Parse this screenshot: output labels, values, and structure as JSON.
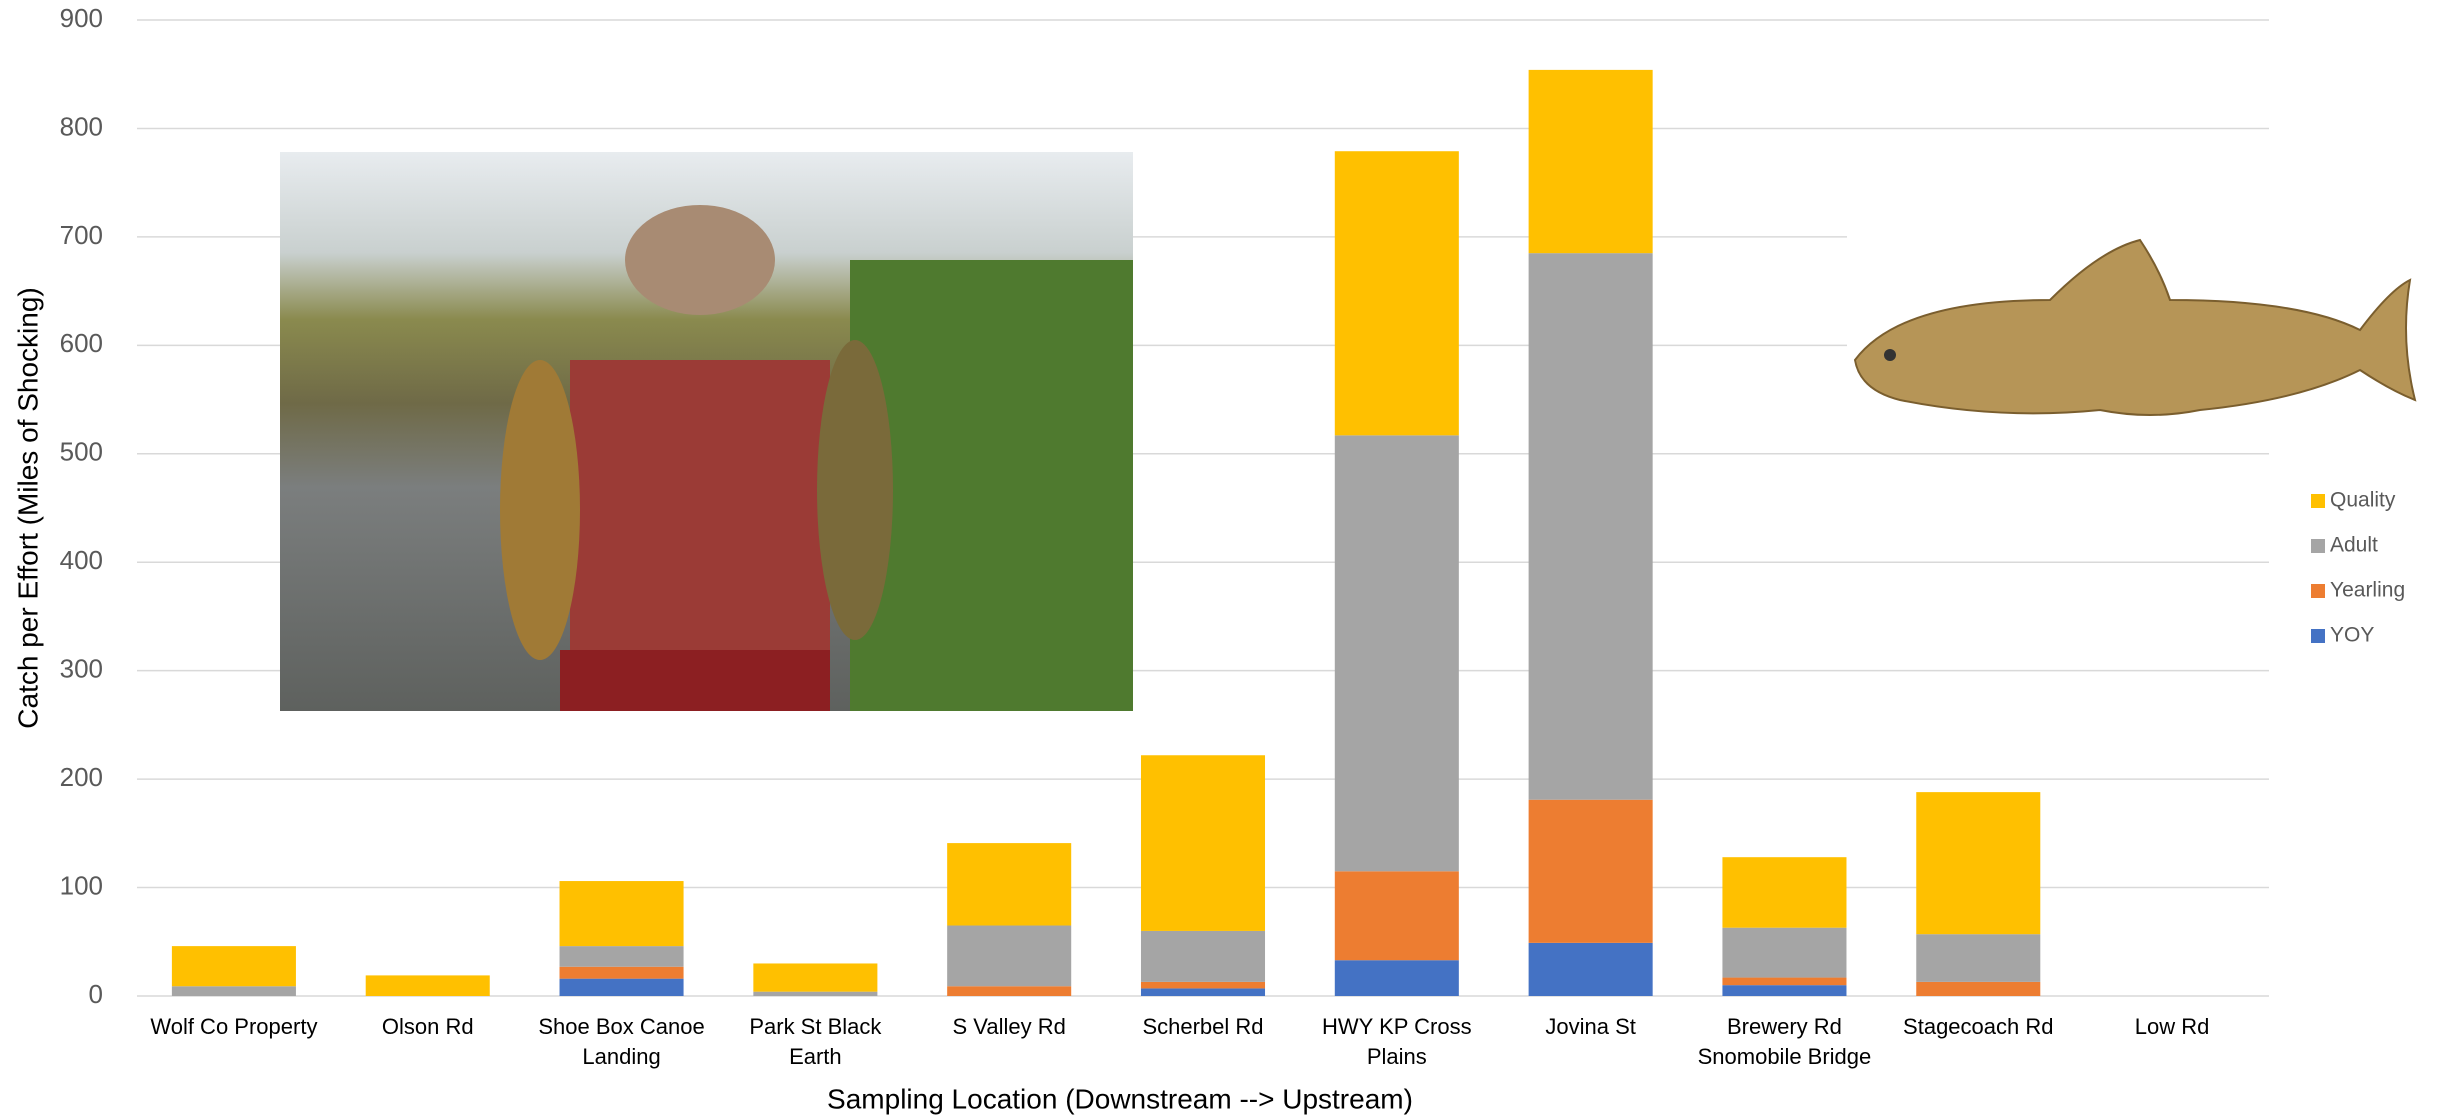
{
  "chart_data": {
    "type": "stacked_bar",
    "x_label": "Sampling Location (Downstream --> Upstream)",
    "y_label": "Catch per Effort (Miles of Shocking)",
    "categories": [
      "Wolf Co Property",
      "Olson Rd",
      "Shoe Box Canoe Landing",
      "Park St Black Earth",
      "S Valley Rd",
      "Scherbel Rd",
      "HWY KP Cross Plains",
      "Jovina St",
      "Brewery Rd Snomobile Bridge",
      "Stagecoach Rd",
      "Low Rd"
    ],
    "series": [
      {
        "name": "YOY",
        "color": "#4472c4",
        "values": [
          0,
          0,
          16,
          0,
          0,
          7,
          33,
          49,
          10,
          0,
          0
        ]
      },
      {
        "name": "Yearling",
        "color": "#ed7d31",
        "values": [
          0,
          0,
          11,
          0,
          9,
          6,
          82,
          132,
          7,
          13,
          0
        ]
      },
      {
        "name": "Adult",
        "color": "#a5a5a5",
        "values": [
          9,
          0,
          19,
          4,
          56,
          47,
          402,
          504,
          46,
          44,
          0
        ]
      },
      {
        "name": "Quality",
        "color": "#ffc000",
        "values": [
          37,
          19,
          60,
          26,
          76,
          162,
          262,
          169,
          65,
          131,
          0
        ]
      }
    ],
    "ylim": [
      0,
      900
    ],
    "yticks": [
      0,
      100,
      200,
      300,
      400,
      500,
      600,
      700,
      800,
      900
    ],
    "grid": true,
    "legend": "right"
  }
}
